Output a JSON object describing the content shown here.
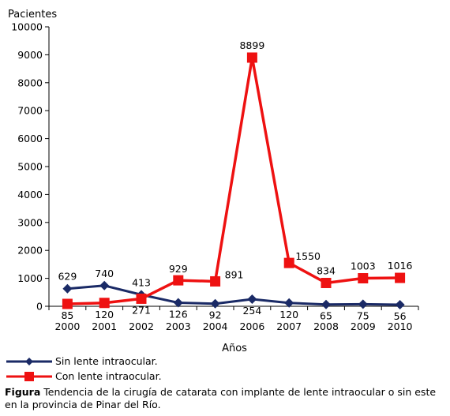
{
  "chart_data": {
    "type": "line",
    "title": "",
    "ylabel": "Pacientes",
    "xlabel": "Años",
    "ylim": [
      0,
      10000
    ],
    "yticks": [
      0,
      1000,
      2000,
      3000,
      4000,
      5000,
      6000,
      7000,
      8000,
      9000,
      10000
    ],
    "grid": false,
    "categories": [
      "2000",
      "2001",
      "2002",
      "2003",
      "2004",
      "2006",
      "2007",
      "2008",
      "2009",
      "2010"
    ],
    "series": [
      {
        "name": "Sin lente intraocular.",
        "values": [
          629,
          740,
          413,
          126,
          92,
          254,
          120,
          65,
          75,
          56
        ],
        "color": "#1a2a66",
        "marker": "diamond"
      },
      {
        "name": "Con lente intraocular.",
        "values": [
          85,
          120,
          271,
          929,
          891,
          8899,
          1550,
          834,
          1003,
          1016
        ],
        "color": "#ee1111",
        "marker": "square"
      }
    ],
    "legend_position": "bottom-left"
  },
  "caption": {
    "label": "Figura",
    "text": " Tendencia de la cirugía de catarata con implante de lente intraocular o sin este en la provincia de Pinar del Río."
  }
}
